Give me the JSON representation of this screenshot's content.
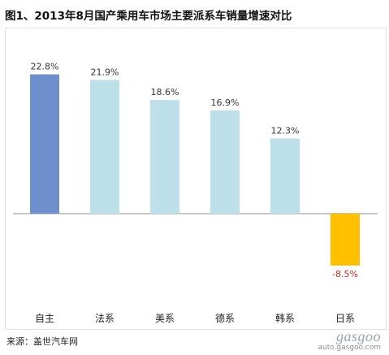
{
  "title": "图1、2013年8月国产乘用车市场主要派系车销量增速对比",
  "source": "来源：盖世汽车网",
  "watermark": {
    "brand": "gasgoo",
    "url": "auto.gasgoo.com"
  },
  "chart_data": {
    "type": "bar",
    "categories": [
      "自主",
      "法系",
      "美系",
      "德系",
      "韩系",
      "日系"
    ],
    "values": [
      22.8,
      21.9,
      18.6,
      16.9,
      12.3,
      -8.5
    ],
    "value_labels": [
      "22.8%",
      "21.9%",
      "18.6%",
      "16.9%",
      "12.3%",
      "-8.5%"
    ],
    "unit": "%",
    "ylim": [
      -12,
      25
    ],
    "grid": false,
    "legend": "none",
    "colors": {
      "highlight": "#6e8fcb",
      "default": "#bddfea",
      "negative": "#ffc000",
      "negative_label": "#d42a2a",
      "positive_label": "#333333"
    },
    "highlight_index": 0
  }
}
